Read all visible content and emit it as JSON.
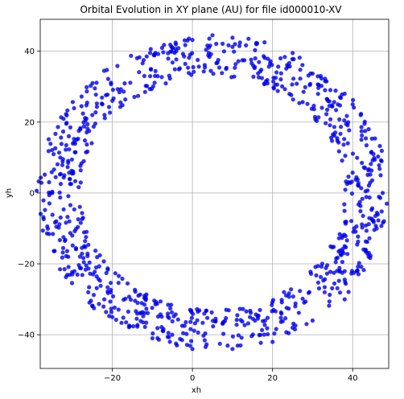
{
  "chart_data": {
    "type": "scatter",
    "title": "Orbital Evolution in XY plane (AU) for file id000010-XV",
    "xlabel": "xh",
    "ylabel": "yh",
    "xlim": [
      -38,
      49
    ],
    "ylim": [
      -49.5,
      49
    ],
    "x_ticks": [
      -20,
      0,
      20,
      40
    ],
    "y_ticks": [
      -40,
      -20,
      0,
      20,
      40
    ],
    "grid": true,
    "point_color": "#0000ee",
    "ring": {
      "center": [
        5,
        0
      ],
      "inner_radius": 33,
      "outer_radius": 44,
      "point_count": 900
    },
    "points": [
      [
        5,
        44.5
      ],
      [
        10,
        43.8
      ],
      [
        14,
        43.5
      ],
      [
        0,
        43.2
      ],
      [
        -5,
        41
      ],
      [
        18,
        42.5
      ],
      [
        25,
        39.5
      ],
      [
        32,
        33
      ],
      [
        38,
        28
      ],
      [
        42,
        22
      ],
      [
        44,
        18
      ],
      [
        47,
        5
      ],
      [
        47.5,
        0
      ],
      [
        46,
        -10
      ],
      [
        44,
        -18
      ],
      [
        38,
        -30
      ],
      [
        30,
        -36
      ],
      [
        20,
        -42
      ],
      [
        10,
        -44
      ],
      [
        0,
        -44
      ],
      [
        -10,
        -41
      ],
      [
        -20,
        -35
      ],
      [
        -26,
        -28
      ],
      [
        -31,
        -18
      ],
      [
        -34,
        -8
      ],
      [
        -35,
        0
      ],
      [
        -33,
        10
      ],
      [
        -28,
        18
      ],
      [
        -20,
        26
      ],
      [
        -12,
        33
      ],
      [
        -32,
        5
      ],
      [
        -30,
        -12
      ],
      [
        -22,
        -30
      ],
      [
        33,
        -28
      ],
      [
        40,
        25
      ],
      [
        -25,
        22
      ],
      [
        22,
        38
      ],
      [
        12,
        -43
      ]
    ]
  }
}
